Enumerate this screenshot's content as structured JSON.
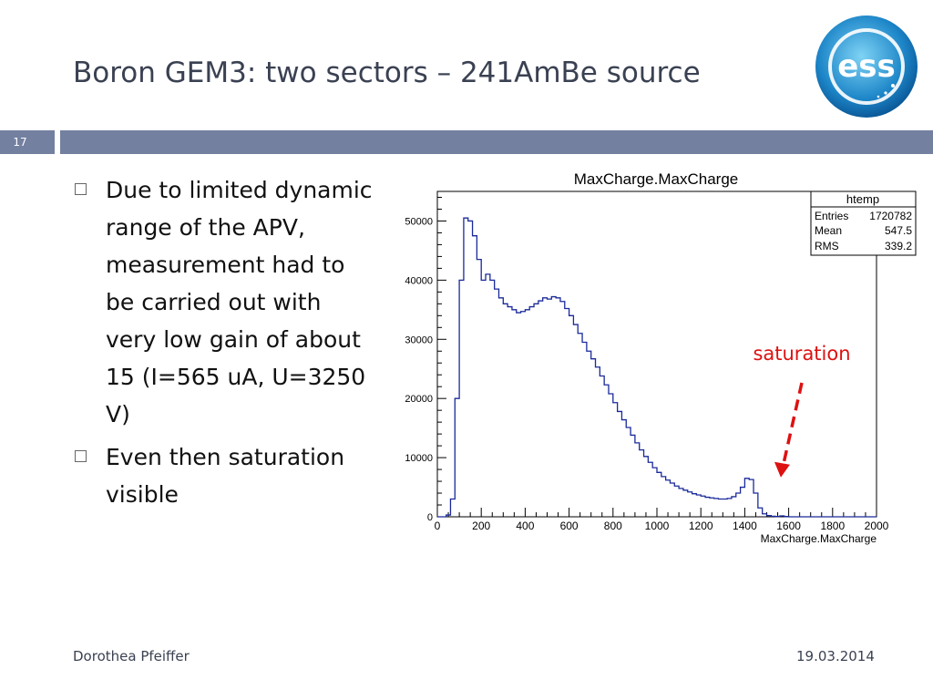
{
  "slide": {
    "title": "Boron GEM3: two sectors – 241AmBe source",
    "number": "17",
    "bullets": [
      "Due to limited dynamic range of the APV, measurement had to be carried out with very low gain of about 15 (I=565 uA, U=3250 V)",
      "Even then saturation visible"
    ],
    "footer_left": "Dorothea Pfeiffer",
    "footer_right": "19.03.2014",
    "logo_text": "ess"
  },
  "colors": {
    "accent": "#7380a0",
    "histogram": "#1a2a9a",
    "annotation": "#dd1111",
    "title": "#3a4152"
  },
  "chart_data": {
    "type": "area",
    "title": "MaxCharge.MaxCharge",
    "xlabel": "MaxCharge.MaxCharge",
    "ylabel": "",
    "xlim": [
      0,
      2000
    ],
    "ylim": [
      0,
      55000
    ],
    "xticks": [
      0,
      200,
      400,
      600,
      800,
      1000,
      1200,
      1400,
      1600,
      1800,
      2000
    ],
    "yticks": [
      0,
      10000,
      20000,
      30000,
      40000,
      50000
    ],
    "legend": "top-right",
    "stats": {
      "name": "htemp",
      "rows": [
        {
          "label": "Entries",
          "value": "1720782"
        },
        {
          "label": "Mean",
          "value": "547.5"
        },
        {
          "label": "RMS",
          "value": "339.2"
        }
      ]
    },
    "annotation": {
      "text": "saturation",
      "x": 1560,
      "y": 6500
    },
    "bin_width": 20,
    "x": [
      0,
      20,
      40,
      60,
      80,
      100,
      120,
      140,
      160,
      180,
      200,
      220,
      240,
      260,
      280,
      300,
      320,
      340,
      360,
      380,
      400,
      420,
      440,
      460,
      480,
      500,
      520,
      540,
      560,
      580,
      600,
      620,
      640,
      660,
      680,
      700,
      720,
      740,
      760,
      780,
      800,
      820,
      840,
      860,
      880,
      900,
      920,
      940,
      960,
      980,
      1000,
      1020,
      1040,
      1060,
      1080,
      1100,
      1120,
      1140,
      1160,
      1180,
      1200,
      1220,
      1240,
      1260,
      1280,
      1300,
      1320,
      1340,
      1360,
      1380,
      1400,
      1420,
      1440,
      1460,
      1480,
      1500,
      1520,
      1540,
      1560,
      1580,
      1600,
      1620,
      1640,
      1660,
      1680,
      1700,
      1720,
      1740,
      1760,
      1780,
      1800,
      1820,
      1840,
      1860,
      1880,
      1900,
      1920,
      1940,
      1960,
      1980
    ],
    "values": [
      0,
      0,
      300,
      3000,
      20000,
      40000,
      50500,
      50000,
      47500,
      43500,
      40000,
      41000,
      40000,
      38500,
      37000,
      36000,
      35500,
      35000,
      34500,
      34700,
      35000,
      35500,
      36000,
      36500,
      37000,
      36800,
      37200,
      37000,
      36400,
      35200,
      34000,
      32500,
      31000,
      29500,
      28000,
      26700,
      25300,
      23800,
      22300,
      20800,
      19300,
      17800,
      16400,
      15100,
      13800,
      12500,
      11300,
      10200,
      9200,
      8300,
      7500,
      6800,
      6200,
      5700,
      5200,
      4800,
      4500,
      4200,
      3900,
      3700,
      3500,
      3300,
      3200,
      3100,
      3000,
      3000,
      3100,
      3400,
      4000,
      5000,
      6500,
      6300,
      4000,
      1500,
      500,
      200,
      100,
      50,
      150,
      50,
      0,
      0,
      0,
      0,
      0,
      0,
      0,
      0,
      0,
      0,
      0,
      0,
      0,
      0,
      0,
      0,
      0,
      0,
      0,
      0
    ]
  }
}
